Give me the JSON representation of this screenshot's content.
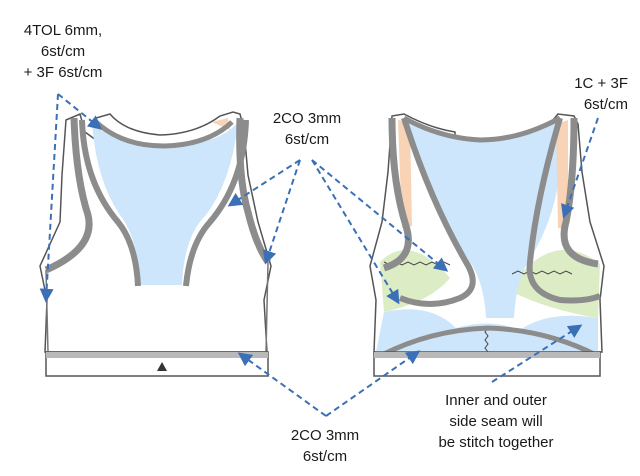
{
  "annotations": {
    "top_left": [
      "4TOL 6mm,",
      "6st/cm",
      "+ 3F 6st/cm"
    ],
    "top_center": [
      "2CO 3mm",
      "6st/cm"
    ],
    "top_right": [
      "1C + 3F",
      "6st/cm"
    ],
    "bottom_center": [
      "2CO 3mm",
      "6st/cm"
    ],
    "bottom_right": [
      "Inner and outer",
      "side seam will",
      "be stitch together"
    ]
  },
  "colors": {
    "panel_blue": "#cde6fb",
    "panel_green": "#dcecc5",
    "panel_peach": "#f8d3b6",
    "binding_gray": "#8c8c8c",
    "arrow_blue": "#3b6fb6"
  }
}
